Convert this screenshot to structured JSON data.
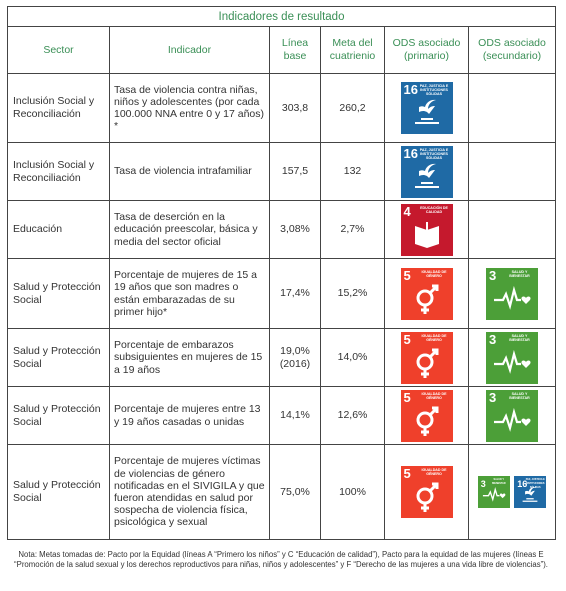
{
  "title": "Indicadores de resultado",
  "headers": {
    "sector": "Sector",
    "indicador": "Indicador",
    "linea_base": "Línea base",
    "meta": "Meta del cuatrienio",
    "ods_primario": "ODS asociado (primario)",
    "ods_secundario": "ODS asociado (secundario)"
  },
  "rows": [
    {
      "sector": "Inclusión Social y Reconciliación",
      "indicador": "Tasa de violencia contra niñas, niños y adolescentes (por cada 100.000 NNA entre 0 y 17 años) *",
      "linea_base": "303,8",
      "meta": "260,2"
    },
    {
      "sector": "Inclusión Social y Reconciliación",
      "indicador": "Tasa de violencia intrafamiliar",
      "linea_base": "157,5",
      "meta": "132"
    },
    {
      "sector": "Educación",
      "indicador": "Tasa de deserción en la educación preescolar, básica y media del sector oficial",
      "linea_base": "3,08%",
      "meta": "2,7%"
    },
    {
      "sector": "Salud y Protección Social",
      "indicador": "Porcentaje de mujeres de 15 a 19 años que son madres o están embarazadas de su primer hijo*",
      "linea_base": "17,4%",
      "meta": "15,2%"
    },
    {
      "sector": "Salud y Protección Social",
      "indicador": "Porcentaje de embarazos subsiguientes en mujeres de 15 a 19 años",
      "linea_base": "19,0% (2016)",
      "meta": "14,0%"
    },
    {
      "sector": "Salud y Protección Social",
      "indicador": "Porcentaje de mujeres entre 13 y 19 años casadas o unidas",
      "linea_base": "14,1%",
      "meta": "12,6%"
    },
    {
      "sector": "Salud y Protección Social",
      "indicador": "Porcentaje de mujeres víctimas de violencias de género notificadas en el SIVIGILA y que fueron atendidas en salud por sospecha de violencia física, psicológica y sexual",
      "linea_base": "75,0%",
      "meta": "100%"
    }
  ],
  "sdg": {
    "16": {
      "num": "16",
      "label": "Paz, justicia e instituciones sólidas",
      "color": "#1f6aa5"
    },
    "4": {
      "num": "4",
      "label": "Educación de calidad",
      "color": "#c5192d"
    },
    "5": {
      "num": "5",
      "label": "Igualdad de género",
      "color": "#ef402b"
    },
    "3": {
      "num": "3",
      "label": "Salud y bienestar",
      "color": "#4c9f38"
    }
  },
  "note": "Nota: Metas tomadas de: Pacto por la Equidad (líneas A “Primero los niños” y C “Educación de calidad”), Pacto para la equidad de las mujeres (líneas E “Promoción de la salud sexual y los derechos reproductivos para niñas, niños y adolescentes” y F “Derecho de las mujeres a una vida libre de violencias”)."
}
